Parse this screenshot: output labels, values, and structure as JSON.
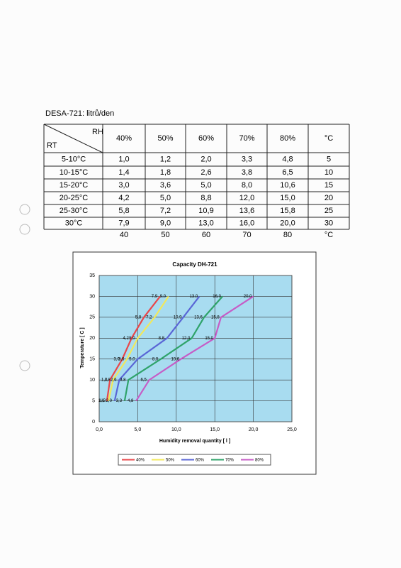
{
  "table": {
    "title": "DESA-721: litrů/den",
    "corner_top": "RH",
    "corner_bottom": "RT",
    "columns": [
      "40%",
      "50%",
      "60%",
      "70%",
      "80%",
      "°C"
    ],
    "rows": [
      {
        "label": "5-10°C",
        "cells": [
          "1,0",
          "1,2",
          "2,0",
          "3,3",
          "4,8",
          "5"
        ]
      },
      {
        "label": "10-15°C",
        "cells": [
          "1,4",
          "1,8",
          "2,6",
          "3,8",
          "6,5",
          "10"
        ]
      },
      {
        "label": "15-20°C",
        "cells": [
          "3,0",
          "3,6",
          "5,0",
          "8,0",
          "10,6",
          "15"
        ]
      },
      {
        "label": "20-25°C",
        "cells": [
          "4,2",
          "5,0",
          "8,8",
          "12,0",
          "15,0",
          "20"
        ]
      },
      {
        "label": "25-30°C",
        "cells": [
          "5,8",
          "7,2",
          "10,9",
          "13,6",
          "15,8",
          "25"
        ]
      },
      {
        "label": "30°C",
        "cells": [
          "7,9",
          "9,0",
          "13,0",
          "16,0",
          "20,0",
          "30"
        ]
      }
    ],
    "footer": [
      "40",
      "50",
      "60",
      "70",
      "80",
      "°C"
    ]
  },
  "chart_data": {
    "type": "line",
    "title": "Capacity DH-721",
    "x_label": "Humidity removal quantity [ l ]",
    "y_label": "Temperature [ C ]",
    "xlim": [
      0,
      25
    ],
    "ylim": [
      0,
      35
    ],
    "xticks": [
      {
        "value": 0,
        "label": "0,0"
      },
      {
        "value": 5,
        "label": "5,0"
      },
      {
        "value": 10,
        "label": "10,0"
      },
      {
        "value": 15,
        "label": "15,0"
      },
      {
        "value": 20,
        "label": "20,0"
      },
      {
        "value": 25,
        "label": "25,0"
      }
    ],
    "yticks": [
      0,
      5,
      10,
      15,
      20,
      25,
      30,
      35
    ],
    "grid": true,
    "series": [
      {
        "name": "40%",
        "color": "#e8474a",
        "x": [
          1.0,
          1.4,
          3.0,
          4.2,
          5.8,
          7.9
        ],
        "values": [
          5,
          10,
          15,
          20,
          25,
          30
        ],
        "labels": [
          "1,0",
          "1,4",
          "3,0",
          "4,2",
          "5,8",
          "7,9"
        ]
      },
      {
        "name": "50%",
        "color": "#f2e85a",
        "x": [
          1.2,
          1.8,
          3.6,
          5.0,
          7.2,
          9.0
        ],
        "values": [
          5,
          10,
          15,
          20,
          25,
          30
        ],
        "labels": [
          "1,2",
          "1,8",
          "3,6",
          "5,0",
          "7,2",
          "9,0"
        ]
      },
      {
        "name": "60%",
        "color": "#5a66d6",
        "x": [
          2.0,
          2.6,
          5.0,
          8.8,
          10.9,
          13.0
        ],
        "values": [
          5,
          10,
          15,
          20,
          25,
          30
        ],
        "labels": [
          "2,0",
          "2,6",
          "5,0",
          "8,8",
          "10,9",
          "13,0"
        ]
      },
      {
        "name": "70%",
        "color": "#2fa36a",
        "x": [
          3.3,
          3.8,
          8.0,
          12.0,
          13.6,
          16.0
        ],
        "values": [
          5,
          10,
          15,
          20,
          25,
          30
        ],
        "labels": [
          "3,3",
          "3,8",
          "8,0",
          "12,0",
          "13,6",
          "16,0"
        ]
      },
      {
        "name": "80%",
        "color": "#c65cc6",
        "x": [
          4.8,
          6.5,
          10.6,
          15.0,
          15.8,
          20.0
        ],
        "values": [
          5,
          10,
          15,
          20,
          25,
          30
        ],
        "labels": [
          "4,8",
          "6,5",
          "10,6",
          "15,0",
          "15,8",
          "20,0"
        ]
      }
    ]
  }
}
